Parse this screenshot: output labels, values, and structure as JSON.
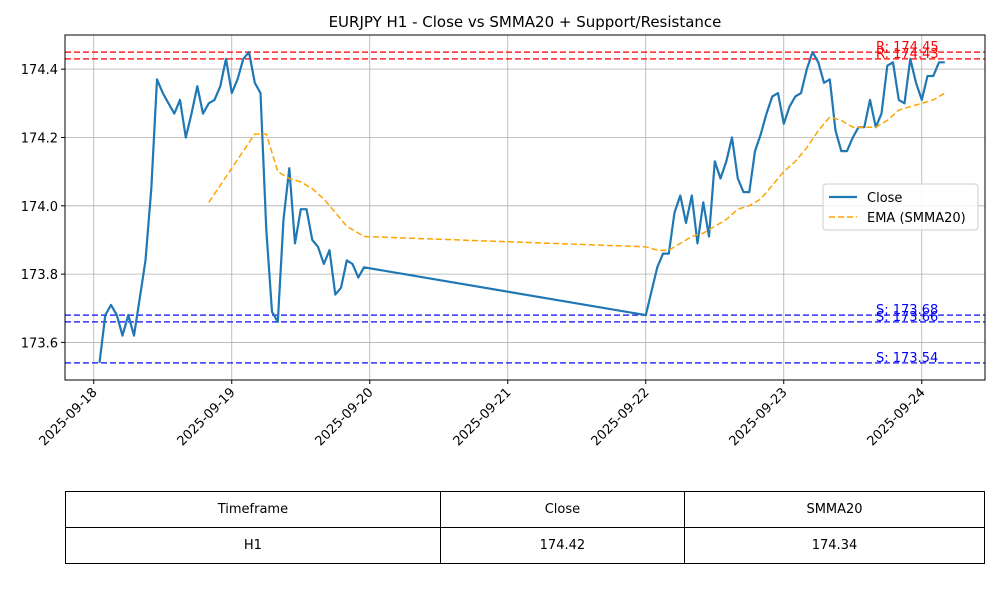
{
  "chart_data": {
    "type": "line",
    "title": "EURJPY H1 - Close vs SMMA20 + Support/Resistance",
    "xlabel": "",
    "ylabel": "",
    "grid": true,
    "legend": "center-right",
    "xlim": [
      "2025-09-17 19:00",
      "2025-09-24 11:00"
    ],
    "ylim": [
      173.49,
      174.5
    ],
    "x_ticks": [
      "2025-09-18",
      "2025-09-19",
      "2025-09-20",
      "2025-09-21",
      "2025-09-22",
      "2025-09-23",
      "2025-09-24"
    ],
    "y_ticks": [
      "173.6",
      "173.8",
      "174.0",
      "174.2",
      "174.4"
    ],
    "series": [
      {
        "name": "Close",
        "color": "#1f77b4",
        "style": "solid",
        "points": [
          [
            "2025-09-18 01:00",
            173.54
          ],
          [
            "2025-09-18 02:00",
            173.68
          ],
          [
            "2025-09-18 03:00",
            173.71
          ],
          [
            "2025-09-18 04:00",
            173.68
          ],
          [
            "2025-09-18 05:00",
            173.62
          ],
          [
            "2025-09-18 06:00",
            173.68
          ],
          [
            "2025-09-18 07:00",
            173.62
          ],
          [
            "2025-09-18 08:00",
            173.73
          ],
          [
            "2025-09-18 09:00",
            173.84
          ],
          [
            "2025-09-18 10:00",
            174.05
          ],
          [
            "2025-09-18 11:00",
            174.37
          ],
          [
            "2025-09-18 12:00",
            174.33
          ],
          [
            "2025-09-18 13:00",
            174.3
          ],
          [
            "2025-09-18 14:00",
            174.27
          ],
          [
            "2025-09-18 15:00",
            174.31
          ],
          [
            "2025-09-18 16:00",
            174.2
          ],
          [
            "2025-09-18 17:00",
            174.27
          ],
          [
            "2025-09-18 18:00",
            174.35
          ],
          [
            "2025-09-18 19:00",
            174.27
          ],
          [
            "2025-09-18 20:00",
            174.3
          ],
          [
            "2025-09-18 21:00",
            174.31
          ],
          [
            "2025-09-18 22:00",
            174.35
          ],
          [
            "2025-09-18 23:00",
            174.43
          ],
          [
            "2025-09-19 00:00",
            174.33
          ],
          [
            "2025-09-19 01:00",
            174.37
          ],
          [
            "2025-09-19 02:00",
            174.43
          ],
          [
            "2025-09-19 03:00",
            174.45
          ],
          [
            "2025-09-19 04:00",
            174.36
          ],
          [
            "2025-09-19 05:00",
            174.33
          ],
          [
            "2025-09-19 06:00",
            173.93
          ],
          [
            "2025-09-19 07:00",
            173.69
          ],
          [
            "2025-09-19 08:00",
            173.66
          ],
          [
            "2025-09-19 09:00",
            173.96
          ],
          [
            "2025-09-19 10:00",
            174.11
          ],
          [
            "2025-09-19 11:00",
            173.89
          ],
          [
            "2025-09-19 12:00",
            173.99
          ],
          [
            "2025-09-19 13:00",
            173.99
          ],
          [
            "2025-09-19 14:00",
            173.9
          ],
          [
            "2025-09-19 15:00",
            173.88
          ],
          [
            "2025-09-19 16:00",
            173.83
          ],
          [
            "2025-09-19 17:00",
            173.87
          ],
          [
            "2025-09-19 18:00",
            173.74
          ],
          [
            "2025-09-19 19:00",
            173.76
          ],
          [
            "2025-09-19 20:00",
            173.84
          ],
          [
            "2025-09-19 21:00",
            173.83
          ],
          [
            "2025-09-19 22:00",
            173.79
          ],
          [
            "2025-09-19 23:00",
            173.82
          ],
          [
            "2025-09-22 00:00",
            173.68
          ],
          [
            "2025-09-22 01:00",
            173.75
          ],
          [
            "2025-09-22 02:00",
            173.82
          ],
          [
            "2025-09-22 03:00",
            173.86
          ],
          [
            "2025-09-22 04:00",
            173.86
          ],
          [
            "2025-09-22 05:00",
            173.98
          ],
          [
            "2025-09-22 06:00",
            174.03
          ],
          [
            "2025-09-22 07:00",
            173.95
          ],
          [
            "2025-09-22 08:00",
            174.03
          ],
          [
            "2025-09-22 09:00",
            173.89
          ],
          [
            "2025-09-22 10:00",
            174.01
          ],
          [
            "2025-09-22 11:00",
            173.91
          ],
          [
            "2025-09-22 12:00",
            174.13
          ],
          [
            "2025-09-22 13:00",
            174.08
          ],
          [
            "2025-09-22 14:00",
            174.13
          ],
          [
            "2025-09-22 15:00",
            174.2
          ],
          [
            "2025-09-22 16:00",
            174.08
          ],
          [
            "2025-09-22 17:00",
            174.04
          ],
          [
            "2025-09-22 18:00",
            174.04
          ],
          [
            "2025-09-22 19:00",
            174.16
          ],
          [
            "2025-09-22 20:00",
            174.21
          ],
          [
            "2025-09-22 21:00",
            174.27
          ],
          [
            "2025-09-22 22:00",
            174.32
          ],
          [
            "2025-09-22 23:00",
            174.33
          ],
          [
            "2025-09-23 00:00",
            174.24
          ],
          [
            "2025-09-23 01:00",
            174.29
          ],
          [
            "2025-09-23 02:00",
            174.32
          ],
          [
            "2025-09-23 03:00",
            174.33
          ],
          [
            "2025-09-23 04:00",
            174.4
          ],
          [
            "2025-09-23 05:00",
            174.45
          ],
          [
            "2025-09-23 06:00",
            174.42
          ],
          [
            "2025-09-23 07:00",
            174.36
          ],
          [
            "2025-09-23 08:00",
            174.37
          ],
          [
            "2025-09-23 09:00",
            174.22
          ],
          [
            "2025-09-23 10:00",
            174.16
          ],
          [
            "2025-09-23 11:00",
            174.16
          ],
          [
            "2025-09-23 12:00",
            174.2
          ],
          [
            "2025-09-23 13:00",
            174.23
          ],
          [
            "2025-09-23 14:00",
            174.23
          ],
          [
            "2025-09-23 15:00",
            174.31
          ],
          [
            "2025-09-23 16:00",
            174.23
          ],
          [
            "2025-09-23 17:00",
            174.27
          ],
          [
            "2025-09-23 18:00",
            174.41
          ],
          [
            "2025-09-23 19:00",
            174.42
          ],
          [
            "2025-09-23 20:00",
            174.31
          ],
          [
            "2025-09-23 21:00",
            174.3
          ],
          [
            "2025-09-23 22:00",
            174.43
          ],
          [
            "2025-09-23 23:00",
            174.36
          ],
          [
            "2025-09-24 00:00",
            174.31
          ],
          [
            "2025-09-24 01:00",
            174.38
          ],
          [
            "2025-09-24 02:00",
            174.38
          ],
          [
            "2025-09-24 03:00",
            174.42
          ],
          [
            "2025-09-24 04:00",
            174.42
          ]
        ]
      },
      {
        "name": "EMA (SMMA20)",
        "color": "#ffa500",
        "style": "dashed",
        "points": [
          [
            "2025-09-18 20:00",
            174.01
          ],
          [
            "2025-09-18 22:00",
            174.06
          ],
          [
            "2025-09-19 00:00",
            174.11
          ],
          [
            "2025-09-19 02:00",
            174.16
          ],
          [
            "2025-09-19 04:00",
            174.21
          ],
          [
            "2025-09-19 06:00",
            174.21
          ],
          [
            "2025-09-19 08:00",
            174.1
          ],
          [
            "2025-09-19 10:00",
            174.08
          ],
          [
            "2025-09-19 12:00",
            174.07
          ],
          [
            "2025-09-19 14:00",
            174.05
          ],
          [
            "2025-09-19 16:00",
            174.02
          ],
          [
            "2025-09-19 18:00",
            173.98
          ],
          [
            "2025-09-19 20:00",
            173.94
          ],
          [
            "2025-09-19 22:00",
            173.92
          ],
          [
            "2025-09-19 23:00",
            173.91
          ],
          [
            "2025-09-22 00:00",
            173.88
          ],
          [
            "2025-09-22 02:00",
            173.87
          ],
          [
            "2025-09-22 04:00",
            173.87
          ],
          [
            "2025-09-22 06:00",
            173.89
          ],
          [
            "2025-09-22 08:00",
            173.91
          ],
          [
            "2025-09-22 10:00",
            173.92
          ],
          [
            "2025-09-22 12:00",
            173.94
          ],
          [
            "2025-09-22 14:00",
            173.96
          ],
          [
            "2025-09-22 16:00",
            173.99
          ],
          [
            "2025-09-22 18:00",
            174.0
          ],
          [
            "2025-09-22 20:00",
            174.02
          ],
          [
            "2025-09-22 22:00",
            174.06
          ],
          [
            "2025-09-23 00:00",
            174.1
          ],
          [
            "2025-09-23 02:00",
            174.13
          ],
          [
            "2025-09-23 04:00",
            174.17
          ],
          [
            "2025-09-23 06:00",
            174.22
          ],
          [
            "2025-09-23 08:00",
            174.26
          ],
          [
            "2025-09-23 10:00",
            174.25
          ],
          [
            "2025-09-23 12:00",
            174.23
          ],
          [
            "2025-09-23 14:00",
            174.23
          ],
          [
            "2025-09-23 16:00",
            174.23
          ],
          [
            "2025-09-23 18:00",
            174.25
          ],
          [
            "2025-09-23 20:00",
            174.28
          ],
          [
            "2025-09-23 22:00",
            174.29
          ],
          [
            "2025-09-24 00:00",
            174.3
          ],
          [
            "2025-09-24 02:00",
            174.31
          ],
          [
            "2025-09-24 04:00",
            174.33
          ]
        ]
      }
    ],
    "levels": [
      {
        "kind": "resistance",
        "value": 174.45,
        "label": "R: 174.45",
        "color": "#ff0000"
      },
      {
        "kind": "resistance",
        "value": 174.43,
        "label": "R: 174.43",
        "color": "#ff0000"
      },
      {
        "kind": "support",
        "value": 173.68,
        "label": "S: 173.68",
        "color": "#0000ff"
      },
      {
        "kind": "support",
        "value": 173.66,
        "label": "S: 173.66",
        "color": "#0000ff"
      },
      {
        "kind": "support",
        "value": 173.54,
        "label": "S: 173.54",
        "color": "#0000ff"
      }
    ]
  },
  "table": {
    "headers": [
      "Timeframe",
      "Close",
      "SMMA20"
    ],
    "rows": [
      [
        "H1",
        "174.42",
        "174.34"
      ]
    ]
  }
}
